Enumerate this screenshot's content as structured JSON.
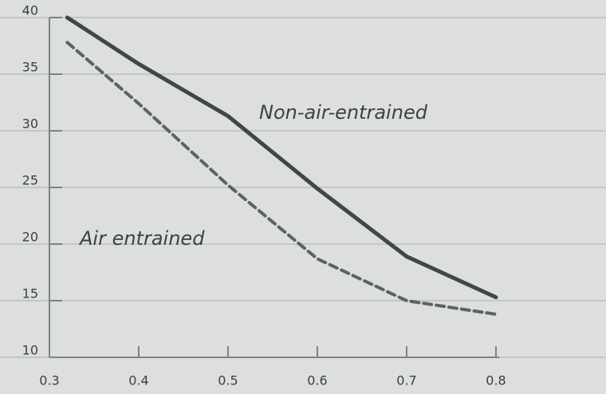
{
  "chart_data": {
    "type": "line",
    "x": [
      0.32,
      0.4,
      0.5,
      0.6,
      0.7,
      0.8
    ],
    "series": [
      {
        "name": "Non-air-entrained",
        "color": "#3f4846",
        "style": "solid",
        "values": [
          40,
          35.9,
          31.3,
          24.9,
          18.9,
          15.3
        ]
      },
      {
        "name": "Air entrained",
        "color": "#5c6361",
        "style": "dashed",
        "values": [
          37.8,
          32.4,
          25.2,
          18.7,
          15,
          13.8
        ]
      }
    ],
    "xlim": [
      0.3,
      0.8
    ],
    "xticks": [
      0.3,
      0.4,
      0.5,
      0.6,
      0.7,
      0.8
    ],
    "ylim": [
      10,
      40
    ],
    "yticks": [
      10,
      15,
      20,
      25,
      30,
      35,
      40
    ],
    "grid": true
  }
}
